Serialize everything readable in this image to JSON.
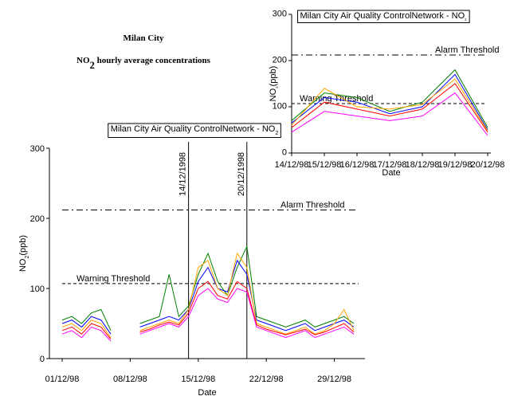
{
  "chart_data": [
    {
      "type": "line",
      "title": "Milan City",
      "subtitle": [
        "NO",
        "2",
        " hourly average concentrations"
      ],
      "chart_title": [
        "Milan City Air Quality ControlNetwork - NO",
        "2"
      ],
      "x_label": "Date",
      "y_label": [
        "NO",
        "2",
        "(ppb)"
      ],
      "x": [
        "01/12/98",
        "02/12/98",
        "03/12/98",
        "04/12/98",
        "05/12/98",
        "06/12/98",
        "07/12/98",
        "08/12/98",
        "09/12/98",
        "10/12/98",
        "11/12/98",
        "12/12/98",
        "13/12/98",
        "14/12/98",
        "15/12/98",
        "16/12/98",
        "17/12/98",
        "18/12/98",
        "19/12/98",
        "20/12/98",
        "21/12/98",
        "22/12/98",
        "23/12/98",
        "24/12/98",
        "25/12/98",
        "26/12/98",
        "27/12/98",
        "28/12/98",
        "29/12/98",
        "30/12/98",
        "31/12/98"
      ],
      "xlim": [
        "01/12/98",
        "31/12/98"
      ],
      "xticks": [
        "01/12/98",
        "08/12/98",
        "15/12/98",
        "22/12/98",
        "29/12/98"
      ],
      "ylim": [
        0,
        300
      ],
      "yticks": [
        0,
        100,
        200,
        300
      ],
      "thresholds": [
        {
          "label": "Alarm Threshold",
          "value": 212,
          "style": "dashdot"
        },
        {
          "label": "Warning Threshold",
          "value": 107,
          "style": "dash"
        }
      ],
      "markers": [
        {
          "label": "14/12/1998"
        },
        {
          "label": "20/12/1998"
        }
      ],
      "series": [
        {
          "color": "#008000",
          "values": [
            55,
            60,
            50,
            65,
            70,
            40,
            null,
            null,
            50,
            55,
            60,
            120,
            60,
            75,
            120,
            150,
            110,
            90,
            130,
            160,
            60,
            55,
            50,
            45,
            50,
            55,
            45,
            50,
            55,
            60,
            50
          ]
        },
        {
          "color": "#0000ff",
          "values": [
            50,
            55,
            45,
            60,
            55,
            35,
            null,
            null,
            45,
            50,
            55,
            60,
            55,
            70,
            110,
            130,
            100,
            95,
            140,
            120,
            55,
            50,
            45,
            40,
            45,
            50,
            40,
            45,
            50,
            55,
            45
          ]
        },
        {
          "color": "#ffa500",
          "values": [
            45,
            50,
            40,
            55,
            50,
            30,
            null,
            null,
            40,
            45,
            50,
            55,
            50,
            70,
            130,
            140,
            100,
            90,
            150,
            130,
            50,
            45,
            40,
            35,
            40,
            45,
            35,
            40,
            50,
            70,
            40
          ]
        },
        {
          "color": "#ff0000",
          "values": [
            40,
            45,
            35,
            50,
            45,
            28,
            null,
            null,
            38,
            42,
            48,
            52,
            48,
            65,
            100,
            110,
            90,
            85,
            110,
            100,
            48,
            42,
            38,
            34,
            38,
            42,
            34,
            38,
            44,
            50,
            38
          ]
        },
        {
          "color": "#ff00ff",
          "values": [
            35,
            40,
            30,
            45,
            40,
            25,
            null,
            null,
            35,
            40,
            45,
            50,
            45,
            60,
            90,
            100,
            85,
            80,
            100,
            95,
            45,
            40,
            35,
            30,
            35,
            40,
            30,
            35,
            40,
            45,
            35
          ]
        }
      ]
    },
    {
      "type": "line",
      "chart_title": [
        "Milan City Air Quality ControlNetwork - NO",
        "2"
      ],
      "x_label": "Date",
      "y_label": [
        "NO",
        "2",
        "(ppb)"
      ],
      "x": [
        "14/12/98",
        "15/12/98",
        "16/12/98",
        "17/12/98",
        "18/12/98",
        "19/12/98",
        "20/12/98"
      ],
      "xlim": [
        "14/12/98",
        "20/12/98"
      ],
      "xticks": [
        "14/12/98",
        "15/12/98",
        "16/12/98",
        "17/12/98",
        "18/12/98",
        "19/12/98",
        "20/12/98"
      ],
      "ylim": [
        0,
        300
      ],
      "yticks": [
        0,
        100,
        200,
        300
      ],
      "thresholds": [
        {
          "label": "Alarm Threshold",
          "value": 212,
          "style": "dashdot"
        },
        {
          "label": "Warning Threshold",
          "value": 107,
          "style": "dash"
        }
      ],
      "series": [
        {
          "color": "#008000",
          "values": [
            70,
            130,
            120,
            90,
            110,
            180,
            55
          ]
        },
        {
          "color": "#0000ff",
          "values": [
            65,
            120,
            110,
            85,
            100,
            170,
            50
          ]
        },
        {
          "color": "#ffa500",
          "values": [
            60,
            140,
            100,
            95,
            105,
            160,
            48
          ]
        },
        {
          "color": "#ff0000",
          "values": [
            55,
            110,
            95,
            80,
            95,
            150,
            45
          ]
        },
        {
          "color": "#ff00ff",
          "values": [
            45,
            90,
            80,
            70,
            80,
            130,
            38
          ]
        }
      ]
    }
  ]
}
